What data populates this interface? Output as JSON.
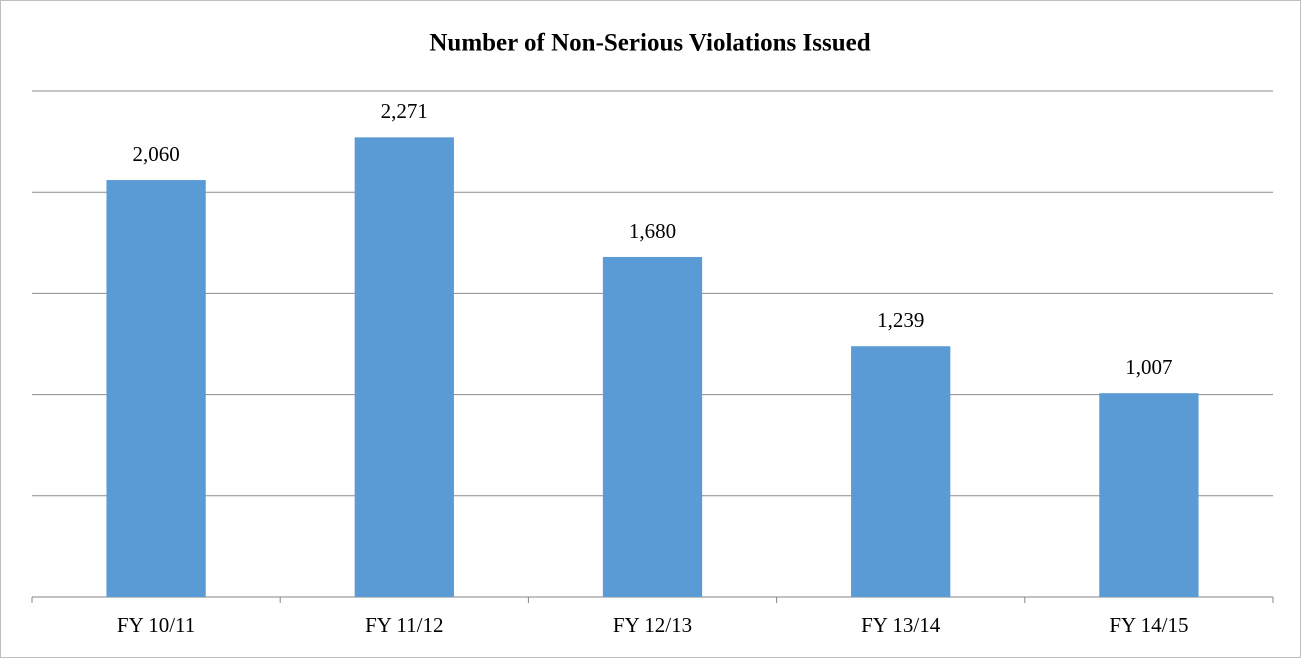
{
  "chart_data": {
    "type": "bar",
    "title": "Number of Non-Serious Violations Issued",
    "categories": [
      "FY 10/11",
      "FY 11/12",
      "FY 12/13",
      "FY 13/14",
      "FY 14/15"
    ],
    "values": [
      2060,
      2271,
      1680,
      1239,
      1007
    ],
    "value_labels": [
      "2,060",
      "2,271",
      "1,680",
      "1,239",
      "1,007"
    ],
    "color": "#5b9bd5",
    "ylim": [
      0,
      2500
    ],
    "yticks": [
      0,
      500,
      1000,
      1500,
      2000,
      2500
    ],
    "grid": true
  }
}
